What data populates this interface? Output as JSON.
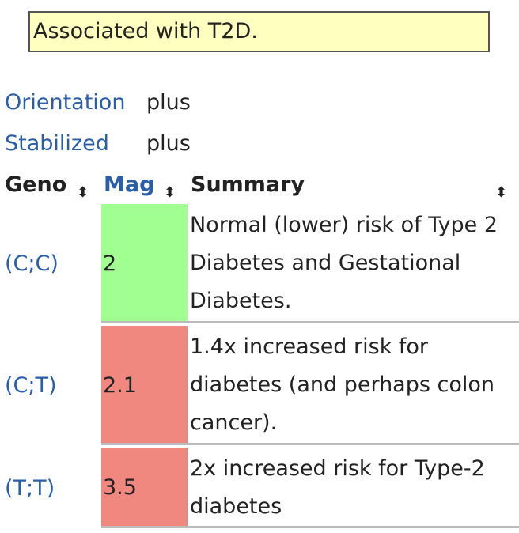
{
  "note": "Associated with T2D.",
  "props": [
    {
      "label": "Orientation",
      "value": "plus"
    },
    {
      "label": "Stabilized",
      "value": "plus"
    }
  ],
  "table": {
    "headers": {
      "geno": "Geno",
      "mag": "Mag",
      "summary": "Summary"
    },
    "sort_glyph": "⬍",
    "rows": [
      {
        "geno": "(C;C)",
        "mag": "2",
        "summary": "Normal (lower) risk of Type 2 Diabetes and Gestational Diabetes.",
        "color": "#a0ff90"
      },
      {
        "geno": "(C;T)",
        "mag": "2.1",
        "summary": "1.4x increased risk for diabetes (and perhaps colon cancer).",
        "color": "#f08880"
      },
      {
        "geno": "(T;T)",
        "mag": "3.5",
        "summary": "2x increased risk for Type-2 diabetes",
        "color": "#f08880"
      }
    ]
  }
}
